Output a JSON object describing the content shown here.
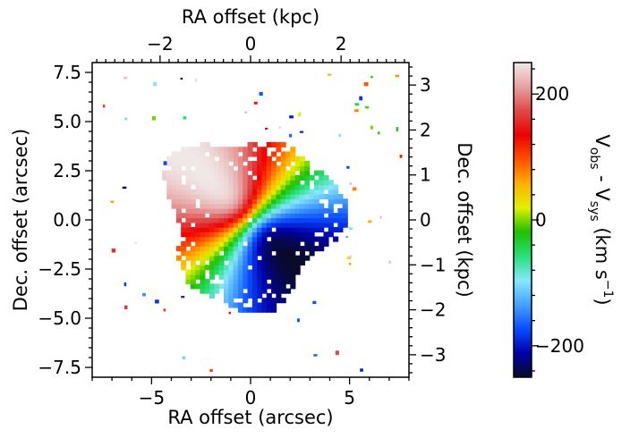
{
  "chart_data": {
    "type": "heatmap",
    "description_free": true,
    "x": {
      "bottom_label": "RA offset (arcsec)",
      "bottom_range": [
        -8,
        8
      ],
      "bottom_ticks": [
        -5,
        0,
        5
      ],
      "top_label": "RA offset (kpc)",
      "top_range": [
        -3.5,
        3.5
      ],
      "top_ticks": [
        -2,
        0,
        2
      ]
    },
    "y": {
      "left_label": "Dec. offset (arcsec)",
      "left_range": [
        -8,
        8
      ],
      "left_ticks": [
        -7.5,
        -5.0,
        -2.5,
        0.0,
        2.5,
        5.0,
        7.5
      ],
      "right_label": "Dec. offset (kpc)",
      "right_range": [
        -3.5,
        3.5
      ],
      "right_ticks": [
        -3,
        -2,
        -1,
        0,
        1,
        2,
        3
      ]
    },
    "colorbar": {
      "label_main": "V",
      "label_sub1": "obs",
      "label_mid": " - V",
      "label_sub2": "sys",
      "label_unit": " (km s",
      "label_sup": "−1",
      "label_close": ")",
      "range": [
        -250,
        250
      ],
      "ticks": [
        -200,
        0,
        200
      ],
      "colors": [
        "#0a0a28",
        "#0000aa",
        "#0a4cff",
        "#46a0ff",
        "#88e6ff",
        "#26e07a",
        "#1ec000",
        "#e0f000",
        "#ffb000",
        "#ff5000",
        "#ee0000",
        "#e04848",
        "#e8a0a0",
        "#f0e8e8"
      ]
    },
    "velocity_field": {
      "center": [
        0,
        0
      ],
      "radius_arcsec": 4.3,
      "approaching_pa_deg": 315,
      "v_amplitude": 250,
      "grid": false
    }
  },
  "axes": {
    "x_tick_labels": [
      "−5",
      "0",
      "5"
    ],
    "top_tick_labels": [
      "−2",
      "0",
      "2"
    ],
    "y_tick_labels": [
      "−7.5",
      "−5.0",
      "−2.5",
      "0.0",
      "2.5",
      "5.0",
      "7.5"
    ],
    "right_tick_labels": [
      "−3",
      "−2",
      "−1",
      "0",
      "1",
      "2",
      "3"
    ],
    "cbar_tick_labels": [
      "−200",
      "0",
      "200"
    ]
  }
}
